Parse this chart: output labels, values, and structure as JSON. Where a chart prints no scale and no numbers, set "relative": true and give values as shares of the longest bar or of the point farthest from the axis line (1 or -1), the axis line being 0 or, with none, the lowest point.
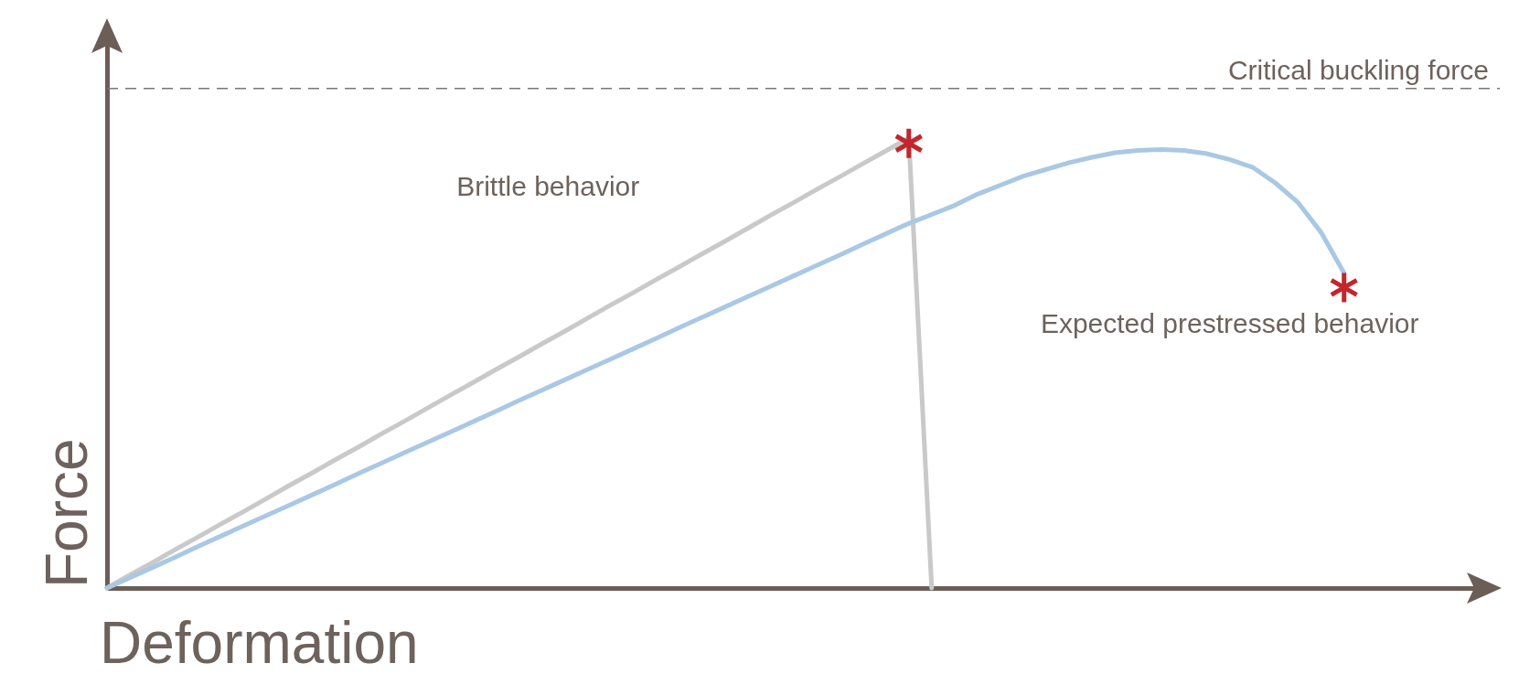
{
  "chart_data": {
    "type": "line",
    "relative": true,
    "xlabel": "Deformation",
    "ylabel": "Force",
    "categories": [
      null,
      null,
      null,
      null,
      null,
      null,
      null,
      null,
      null,
      null,
      null,
      null,
      null,
      null,
      null,
      null,
      null,
      null,
      null,
      null,
      null,
      null,
      null,
      null,
      null,
      null,
      null,
      null,
      null,
      null,
      null,
      null,
      null,
      null,
      null,
      null,
      null,
      null,
      null,
      null,
      null,
      null,
      null,
      null,
      null,
      null,
      null,
      null,
      null,
      null,
      null,
      null,
      null,
      null,
      null,
      null,
      null,
      null,
      null,
      null,
      null
    ],
    "series": [
      {
        "color": "#c9c9c9",
        "values": [
          0,
          0.029,
          0.057,
          0.086,
          0.114,
          0.143,
          0.171,
          0.2,
          0.229,
          0.257,
          0.286,
          0.314,
          0.343,
          0.371,
          0.4,
          0.429,
          0.457,
          0.486,
          0.514,
          0.543,
          0.571,
          0.6,
          0.629,
          0.657,
          0.686,
          0.714,
          0.743,
          0.771,
          0.8,
          0.829,
          0.857,
          0.886,
          0.914,
          0.943,
          0.971,
          1,
          0,
          null,
          null,
          null,
          null,
          null,
          null,
          null,
          null,
          null,
          null,
          null,
          null,
          null,
          null,
          null,
          null,
          null,
          null,
          null,
          null,
          null,
          null,
          null,
          null
        ]
      },
      {
        "color": "#a9c8e4",
        "values": [
          0,
          0.023,
          0.046,
          0.069,
          0.093,
          0.116,
          0.139,
          0.162,
          0.185,
          0.208,
          0.231,
          0.255,
          0.278,
          0.301,
          0.324,
          0.347,
          0.37,
          0.393,
          0.417,
          0.44,
          0.463,
          0.486,
          0.509,
          0.532,
          0.555,
          0.579,
          0.602,
          0.625,
          0.648,
          0.671,
          0.694,
          0.717,
          0.74,
          0.764,
          0.787,
          0.81,
          0.83,
          0.85,
          0.875,
          0.895,
          0.915,
          0.93,
          0.945,
          0.957,
          0.967,
          0.972,
          0.974,
          0.972,
          0.965,
          0.952,
          0.935,
          0.9,
          0.856,
          0.79,
          0.7,
          null,
          null,
          null,
          null,
          null,
          null
        ]
      }
    ],
    "ref_lines": [
      {
        "axis": "y",
        "value": 1.11,
        "label": "Critical buckling force",
        "color": "#777777",
        "line_style": "dashed"
      }
    ],
    "annotations": [
      "Brittle behavior",
      "Expected prestressed behavior"
    ]
  }
}
